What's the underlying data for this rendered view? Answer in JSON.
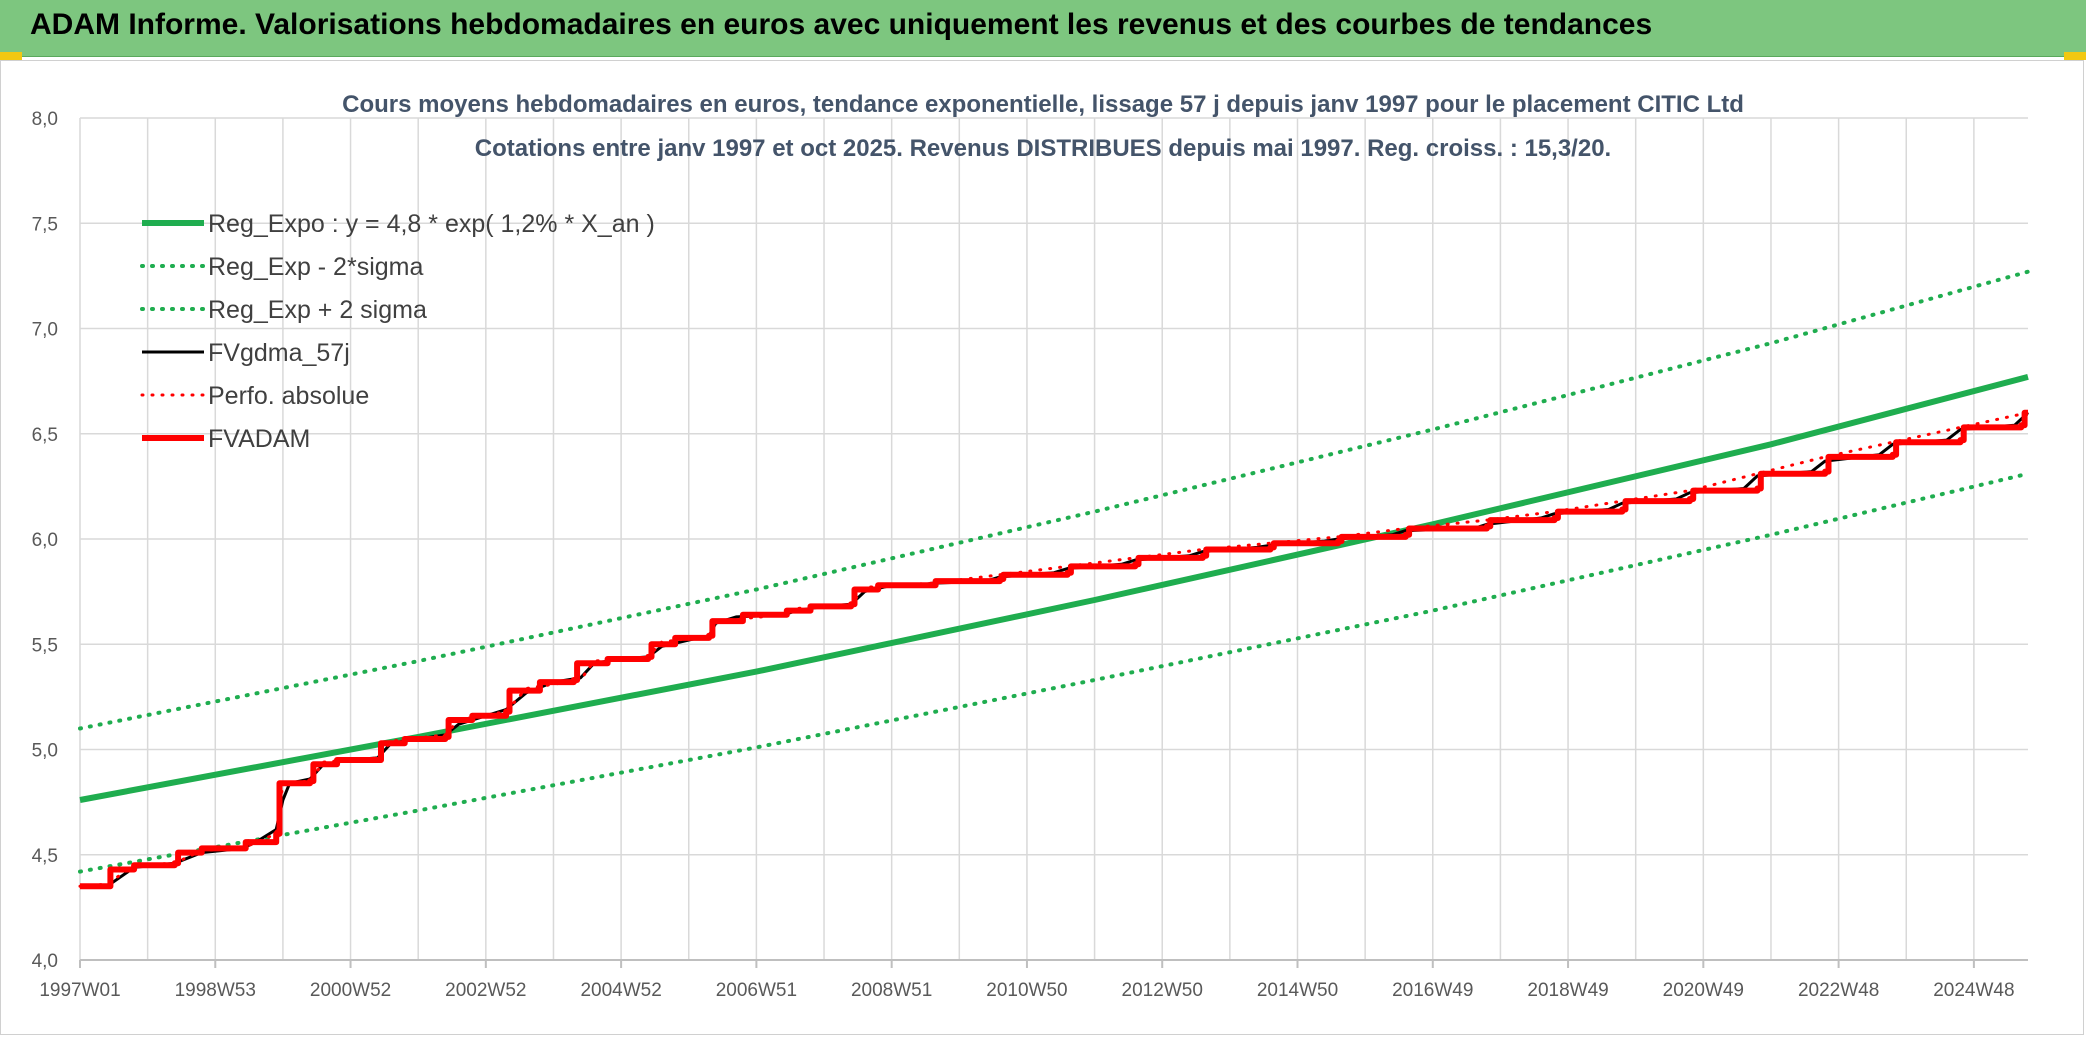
{
  "page": {
    "banner_title": "ADAM Informe. Valorisations hebdomadaires en euros avec uniquement les revenus et des courbes de tendances"
  },
  "colors": {
    "banner": "#7dc67f",
    "accent": "#f2c811",
    "green": "#1fad4f",
    "black": "#000000",
    "red": "#ff0000",
    "grid": "#d9d9d9"
  },
  "chart_data": {
    "type": "line",
    "title": "Cours moyens hebdomadaires en euros, tendance exponentielle, lissage 57 j depuis janv 1997 pour le placement CITIC Ltd",
    "subtitle": "Cotations entre janv 1997 et oct 2025. Revenus DISTRIBUES depuis mai 1997. Reg. croiss. : 15,3/20.",
    "xlabel": "",
    "ylabel": "",
    "xlim": [
      1997.0,
      2025.8
    ],
    "ylim": [
      4.0,
      8.0
    ],
    "grid": true,
    "legend_position": "top-left",
    "x_ticks": [
      {
        "label": "1997W01",
        "x": 1997.0
      },
      {
        "label": "1998W53",
        "x": 1999.0
      },
      {
        "label": "2000W52",
        "x": 2001.0
      },
      {
        "label": "2002W52",
        "x": 2003.0
      },
      {
        "label": "2004W52",
        "x": 2005.0
      },
      {
        "label": "2006W51",
        "x": 2007.0
      },
      {
        "label": "2008W51",
        "x": 2009.0
      },
      {
        "label": "2010W50",
        "x": 2011.0
      },
      {
        "label": "2012W50",
        "x": 2013.0
      },
      {
        "label": "2014W50",
        "x": 2015.0
      },
      {
        "label": "2016W49",
        "x": 2017.0
      },
      {
        "label": "2018W49",
        "x": 2019.0
      },
      {
        "label": "2020W49",
        "x": 2021.0
      },
      {
        "label": "2022W48",
        "x": 2023.0
      },
      {
        "label": "2024W48",
        "x": 2025.0
      }
    ],
    "y_ticks": [
      {
        "label": "4,0",
        "y": 4.0
      },
      {
        "label": "4,5",
        "y": 4.5
      },
      {
        "label": "5,0",
        "y": 5.0
      },
      {
        "label": "5,5",
        "y": 5.5
      },
      {
        "label": "6,0",
        "y": 6.0
      },
      {
        "label": "6,5",
        "y": 6.5
      },
      {
        "label": "7,0",
        "y": 7.0
      },
      {
        "label": "7,5",
        "y": 7.5
      },
      {
        "label": "8,0",
        "y": 8.0
      }
    ],
    "series": [
      {
        "name": "Reg_Expo : y = 4,8 * exp( 1,2% *  X_an )",
        "color": "#1fad4f",
        "style": "solid",
        "width": 6,
        "points": [
          [
            1997.0,
            4.76
          ],
          [
            2002.0,
            5.06
          ],
          [
            2007.0,
            5.37
          ],
          [
            2012.0,
            5.71
          ],
          [
            2017.0,
            6.07
          ],
          [
            2022.0,
            6.45
          ],
          [
            2025.8,
            6.77
          ]
        ]
      },
      {
        "name": "Reg_Exp - 2*sigma",
        "color": "#1fad4f",
        "style": "dotted",
        "width": 4,
        "points": [
          [
            1997.0,
            4.42
          ],
          [
            2002.0,
            4.71
          ],
          [
            2007.0,
            5.01
          ],
          [
            2012.0,
            5.33
          ],
          [
            2017.0,
            5.66
          ],
          [
            2022.0,
            6.02
          ],
          [
            2025.8,
            6.31
          ]
        ]
      },
      {
        "name": "Reg_Exp + 2 sigma",
        "color": "#1fad4f",
        "style": "dotted",
        "width": 4,
        "points": [
          [
            1997.0,
            5.1
          ],
          [
            2002.0,
            5.42
          ],
          [
            2007.0,
            5.76
          ],
          [
            2012.0,
            6.13
          ],
          [
            2017.0,
            6.52
          ],
          [
            2022.0,
            6.93
          ],
          [
            2025.8,
            7.27
          ]
        ]
      },
      {
        "name": "FVgdma_57j",
        "color": "#000000",
        "style": "solid",
        "width": 3,
        "points": [
          [
            1997.0,
            4.35
          ],
          [
            1997.4,
            4.35
          ],
          [
            1997.8,
            4.44
          ],
          [
            1998.4,
            4.46
          ],
          [
            1998.8,
            4.51
          ],
          [
            1999.4,
            4.53
          ],
          [
            1999.6,
            4.56
          ],
          [
            1999.9,
            4.62
          ],
          [
            2000.0,
            4.76
          ],
          [
            2000.1,
            4.84
          ],
          [
            2000.4,
            4.86
          ],
          [
            2000.6,
            4.93
          ],
          [
            2001.0,
            4.95
          ],
          [
            2001.4,
            4.96
          ],
          [
            2001.6,
            5.03
          ],
          [
            2002.0,
            5.05
          ],
          [
            2002.4,
            5.07
          ],
          [
            2002.6,
            5.12
          ],
          [
            2003.0,
            5.16
          ],
          [
            2003.3,
            5.19
          ],
          [
            2003.6,
            5.27
          ],
          [
            2004.0,
            5.32
          ],
          [
            2004.4,
            5.34
          ],
          [
            2004.6,
            5.41
          ],
          [
            2005.0,
            5.43
          ],
          [
            2005.4,
            5.44
          ],
          [
            2005.6,
            5.49
          ],
          [
            2006.0,
            5.52
          ],
          [
            2006.3,
            5.54
          ],
          [
            2006.4,
            5.6
          ],
          [
            2006.7,
            5.63
          ],
          [
            2007.4,
            5.64
          ],
          [
            2007.6,
            5.66
          ],
          [
            2008.0,
            5.68
          ],
          [
            2008.4,
            5.69
          ],
          [
            2008.6,
            5.75
          ],
          [
            2009.0,
            5.78
          ],
          [
            2009.4,
            5.78
          ],
          [
            2009.6,
            5.79
          ],
          [
            2010.4,
            5.8
          ],
          [
            2010.6,
            5.82
          ],
          [
            2011.4,
            5.84
          ],
          [
            2011.6,
            5.86
          ],
          [
            2012.4,
            5.88
          ],
          [
            2012.6,
            5.9
          ],
          [
            2013.4,
            5.92
          ],
          [
            2013.6,
            5.94
          ],
          [
            2014.4,
            5.96
          ],
          [
            2014.6,
            5.97
          ],
          [
            2015.4,
            5.99
          ],
          [
            2015.6,
            6.0
          ],
          [
            2016.4,
            6.02
          ],
          [
            2016.6,
            6.04
          ],
          [
            2017.6,
            6.05
          ],
          [
            2017.8,
            6.07
          ],
          [
            2018.6,
            6.1
          ],
          [
            2018.8,
            6.12
          ],
          [
            2019.6,
            6.14
          ],
          [
            2019.8,
            6.17
          ],
          [
            2020.6,
            6.19
          ],
          [
            2020.8,
            6.22
          ],
          [
            2021.6,
            6.24
          ],
          [
            2021.8,
            6.3
          ],
          [
            2022.6,
            6.32
          ],
          [
            2022.8,
            6.37
          ],
          [
            2023.6,
            6.4
          ],
          [
            2023.8,
            6.45
          ],
          [
            2024.6,
            6.47
          ],
          [
            2024.8,
            6.52
          ],
          [
            2025.6,
            6.54
          ],
          [
            2025.8,
            6.6
          ]
        ]
      },
      {
        "name": "Perfo. absolue",
        "color": "#ff0000",
        "style": "dotted",
        "width": 3,
        "points": [
          [
            1997.0,
            4.35
          ],
          [
            1997.4,
            4.36
          ],
          [
            1997.8,
            4.45
          ],
          [
            1998.4,
            4.46
          ],
          [
            1998.8,
            4.52
          ],
          [
            1999.4,
            4.53
          ],
          [
            1999.9,
            4.6
          ],
          [
            2000.0,
            4.84
          ],
          [
            2000.4,
            4.85
          ],
          [
            2000.6,
            4.94
          ],
          [
            2001.4,
            4.96
          ],
          [
            2001.6,
            5.04
          ],
          [
            2002.4,
            5.07
          ],
          [
            2002.6,
            5.14
          ],
          [
            2003.3,
            5.18
          ],
          [
            2003.6,
            5.29
          ],
          [
            2004.4,
            5.33
          ],
          [
            2004.6,
            5.42
          ],
          [
            2005.4,
            5.44
          ],
          [
            2005.6,
            5.51
          ],
          [
            2006.3,
            5.54
          ],
          [
            2006.4,
            5.61
          ],
          [
            2007.4,
            5.64
          ],
          [
            2007.6,
            5.67
          ],
          [
            2008.4,
            5.69
          ],
          [
            2008.6,
            5.77
          ],
          [
            2009.6,
            5.79
          ],
          [
            2010.6,
            5.83
          ],
          [
            2011.6,
            5.87
          ],
          [
            2012.6,
            5.91
          ],
          [
            2013.6,
            5.95
          ],
          [
            2014.6,
            5.98
          ],
          [
            2015.6,
            6.01
          ],
          [
            2016.6,
            6.05
          ],
          [
            2017.8,
            6.09
          ],
          [
            2018.8,
            6.13
          ],
          [
            2019.8,
            6.18
          ],
          [
            2020.8,
            6.23
          ],
          [
            2021.8,
            6.31
          ],
          [
            2022.8,
            6.39
          ],
          [
            2023.8,
            6.46
          ],
          [
            2024.8,
            6.53
          ],
          [
            2025.8,
            6.6
          ]
        ]
      },
      {
        "name": "FVADAM",
        "color": "#ff0000",
        "style": "step",
        "width": 6,
        "points": [
          [
            1997.0,
            4.35
          ],
          [
            1997.4,
            4.35
          ],
          [
            1997.45,
            4.43
          ],
          [
            1997.8,
            4.45
          ],
          [
            1998.4,
            4.46
          ],
          [
            1998.45,
            4.51
          ],
          [
            1998.8,
            4.53
          ],
          [
            1999.4,
            4.53
          ],
          [
            1999.45,
            4.56
          ],
          [
            1999.9,
            4.6
          ],
          [
            1999.95,
            4.84
          ],
          [
            2000.4,
            4.85
          ],
          [
            2000.45,
            4.93
          ],
          [
            2000.8,
            4.95
          ],
          [
            2001.4,
            4.95
          ],
          [
            2001.45,
            5.03
          ],
          [
            2001.8,
            5.05
          ],
          [
            2002.4,
            5.06
          ],
          [
            2002.45,
            5.14
          ],
          [
            2002.8,
            5.16
          ],
          [
            2003.3,
            5.18
          ],
          [
            2003.35,
            5.28
          ],
          [
            2003.8,
            5.32
          ],
          [
            2004.3,
            5.33
          ],
          [
            2004.35,
            5.41
          ],
          [
            2004.8,
            5.43
          ],
          [
            2005.4,
            5.44
          ],
          [
            2005.45,
            5.5
          ],
          [
            2005.8,
            5.53
          ],
          [
            2006.3,
            5.54
          ],
          [
            2006.35,
            5.61
          ],
          [
            2006.8,
            5.64
          ],
          [
            2007.4,
            5.64
          ],
          [
            2007.45,
            5.66
          ],
          [
            2007.8,
            5.68
          ],
          [
            2008.4,
            5.69
          ],
          [
            2008.45,
            5.76
          ],
          [
            2008.8,
            5.78
          ],
          [
            2009.6,
            5.78
          ],
          [
            2009.65,
            5.8
          ],
          [
            2010.6,
            5.81
          ],
          [
            2010.65,
            5.83
          ],
          [
            2011.6,
            5.84
          ],
          [
            2011.65,
            5.87
          ],
          [
            2012.6,
            5.88
          ],
          [
            2012.65,
            5.91
          ],
          [
            2013.6,
            5.92
          ],
          [
            2013.65,
            5.95
          ],
          [
            2014.6,
            5.96
          ],
          [
            2014.65,
            5.98
          ],
          [
            2015.6,
            5.99
          ],
          [
            2015.65,
            6.01
          ],
          [
            2016.6,
            6.02
          ],
          [
            2016.65,
            6.05
          ],
          [
            2017.8,
            6.06
          ],
          [
            2017.85,
            6.09
          ],
          [
            2018.8,
            6.1
          ],
          [
            2018.85,
            6.13
          ],
          [
            2019.8,
            6.14
          ],
          [
            2019.85,
            6.18
          ],
          [
            2020.8,
            6.19
          ],
          [
            2020.85,
            6.23
          ],
          [
            2021.8,
            6.24
          ],
          [
            2021.85,
            6.31
          ],
          [
            2022.8,
            6.32
          ],
          [
            2022.85,
            6.39
          ],
          [
            2023.8,
            6.4
          ],
          [
            2023.85,
            6.46
          ],
          [
            2024.8,
            6.47
          ],
          [
            2024.85,
            6.53
          ],
          [
            2025.7,
            6.54
          ],
          [
            2025.75,
            6.6
          ],
          [
            2025.8,
            6.6
          ]
        ]
      }
    ]
  }
}
